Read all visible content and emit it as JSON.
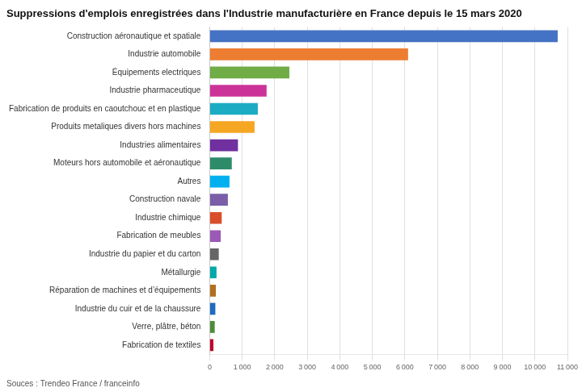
{
  "chart_data": {
    "type": "bar",
    "orientation": "horizontal",
    "title": "Suppressions d'emplois enregistrées dans l'Industrie manufacturière en France depuis le 15 mars 2020",
    "annotations": [
      "Souces : Trendeo France / franceinfo"
    ],
    "categories": [
      "Construction aéronautique et spatiale",
      "Industrie automobile",
      "Équipements electriques",
      "Industrie pharmaceutique",
      "Fabrication de produits en caoutchouc et en plastique",
      "Produits metaliques divers hors machines",
      "Industries alimentaires",
      "Moteurs hors automobile et aéronautique",
      "Autres",
      "Construction navale",
      "Industrie chimique",
      "Fabrication de meubles",
      "Industrie du papier et du carton",
      "Métallurgie",
      "Réparation de machines et d’équipements",
      "Industrie du cuir et de la chaussure",
      "Verre, plâtre, béton",
      "Fabrication de textiles"
    ],
    "values": [
      10700,
      6100,
      2450,
      1750,
      1480,
      1380,
      870,
      680,
      610,
      560,
      370,
      340,
      280,
      210,
      190,
      175,
      155,
      115
    ],
    "colors": [
      "#4472c4",
      "#ed7d31",
      "#70ad47",
      "#cc3399",
      "#1bacc4",
      "#f5a623",
      "#7030a0",
      "#2e8b6a",
      "#00b0f0",
      "#7b5ea7",
      "#d94f2b",
      "#9b59b6",
      "#666666",
      "#00a8a8",
      "#b07020",
      "#1f6bbf",
      "#4d8c38",
      "#c0002a"
    ],
    "xlim": [
      0,
      11000
    ],
    "xticks": [
      0,
      {
        "value": 1000,
        "label": "1 000"
      },
      {
        "value": 2000,
        "label": "2 000"
      },
      {
        "value": 3000,
        "label": "3 000"
      },
      {
        "value": 4000,
        "label": "4 000"
      },
      {
        "value": 5000,
        "label": "5 000"
      },
      {
        "value": 6000,
        "label": "6 000"
      },
      {
        "value": 7000,
        "label": "7 000"
      },
      {
        "value": 8000,
        "label": "8 000"
      },
      {
        "value": 9000,
        "label": "9 000"
      },
      {
        "value": 10000,
        "label": "10 000"
      },
      {
        "value": 11000,
        "label": "11 000"
      }
    ],
    "grid": true
  }
}
